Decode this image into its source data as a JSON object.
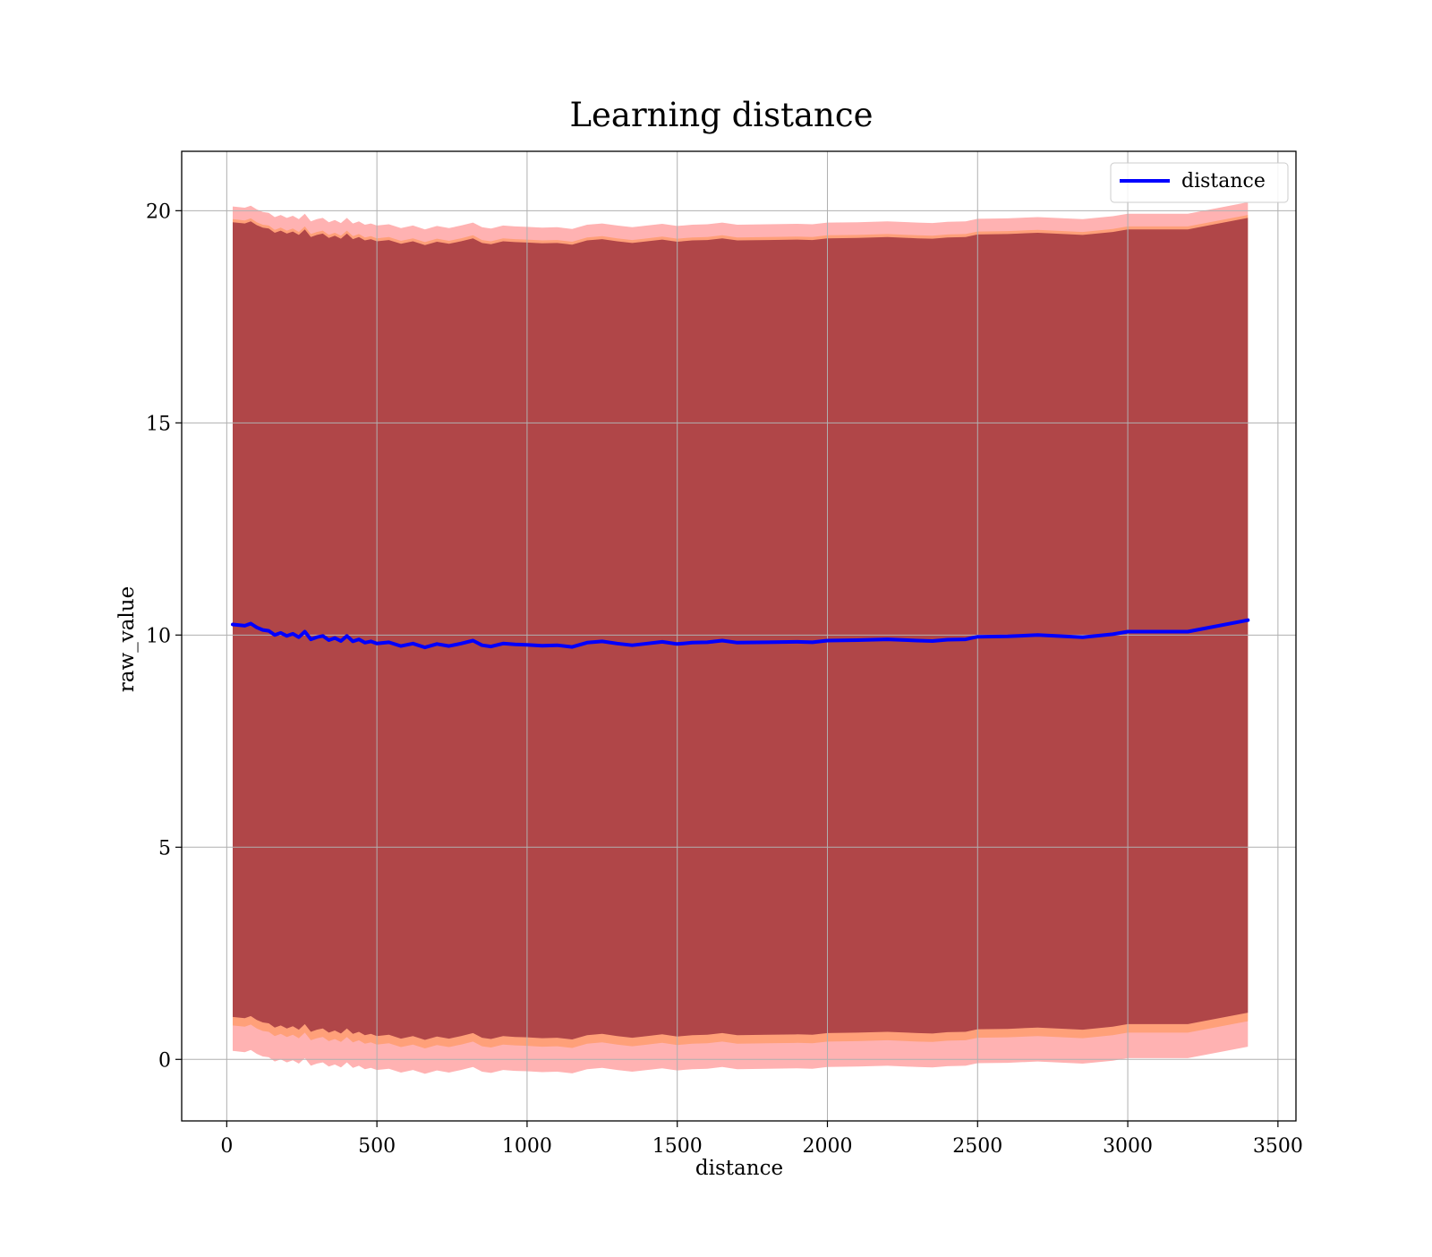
{
  "chart_data": {
    "type": "line",
    "title": "Learning distance",
    "xlabel": "distance",
    "ylabel": "raw_value",
    "xlim": [
      -150,
      3560
    ],
    "ylim": [
      -1.45,
      21.4
    ],
    "xticks": [
      0,
      500,
      1000,
      1500,
      2000,
      2500,
      3000,
      3500
    ],
    "yticks": [
      0,
      5,
      10,
      15,
      20
    ],
    "grid": true,
    "legend": {
      "position": "top-right"
    },
    "colors": {
      "line": "#0000ff",
      "band_outer": "#ff0000",
      "band_middle": "#ff7f0e",
      "band_inner": "#7f0f2a",
      "grid": "#b0b0b0"
    },
    "series": [
      {
        "name": "distance",
        "x": [
          20,
          60,
          80,
          100,
          120,
          140,
          160,
          180,
          200,
          220,
          240,
          260,
          280,
          300,
          320,
          340,
          360,
          380,
          400,
          420,
          440,
          460,
          480,
          500,
          540,
          580,
          620,
          660,
          700,
          740,
          780,
          820,
          850,
          880,
          920,
          960,
          1000,
          1050,
          1100,
          1150,
          1200,
          1250,
          1300,
          1350,
          1400,
          1450,
          1500,
          1550,
          1600,
          1650,
          1700,
          1800,
          1900,
          1950,
          2000,
          2100,
          2200,
          2300,
          2350,
          2400,
          2460,
          2500,
          2600,
          2700,
          2850,
          2950,
          3000,
          3200,
          3400
        ],
        "values": [
          10.25,
          10.22,
          10.27,
          10.18,
          10.12,
          10.1,
          10.0,
          10.05,
          9.98,
          10.03,
          9.95,
          10.08,
          9.9,
          9.95,
          9.98,
          9.88,
          9.93,
          9.86,
          9.98,
          9.85,
          9.9,
          9.82,
          9.85,
          9.8,
          9.83,
          9.74,
          9.8,
          9.71,
          9.79,
          9.74,
          9.8,
          9.87,
          9.76,
          9.73,
          9.8,
          9.78,
          9.77,
          9.75,
          9.76,
          9.72,
          9.82,
          9.85,
          9.8,
          9.76,
          9.8,
          9.84,
          9.79,
          9.82,
          9.83,
          9.87,
          9.82,
          9.83,
          9.84,
          9.83,
          9.87,
          9.88,
          9.9,
          9.87,
          9.86,
          9.89,
          9.9,
          9.96,
          9.97,
          10.0,
          9.95,
          10.02,
          10.08,
          10.08,
          10.35
        ]
      }
    ],
    "bands": [
      {
        "role": "outer",
        "color": "#ff0000",
        "opacity": 0.3,
        "upper_offset": 0.1,
        "lower_offset": -0.15
      },
      {
        "role": "middle",
        "color": "#ff7f0e",
        "opacity": 0.35,
        "upper_offset": -0.2,
        "lower_offset": 0.15
      },
      {
        "role": "inner",
        "color": "#7f0f2a",
        "opacity": 0.62,
        "upper_offset": -0.27,
        "lower_offset": 0.25
      }
    ]
  }
}
